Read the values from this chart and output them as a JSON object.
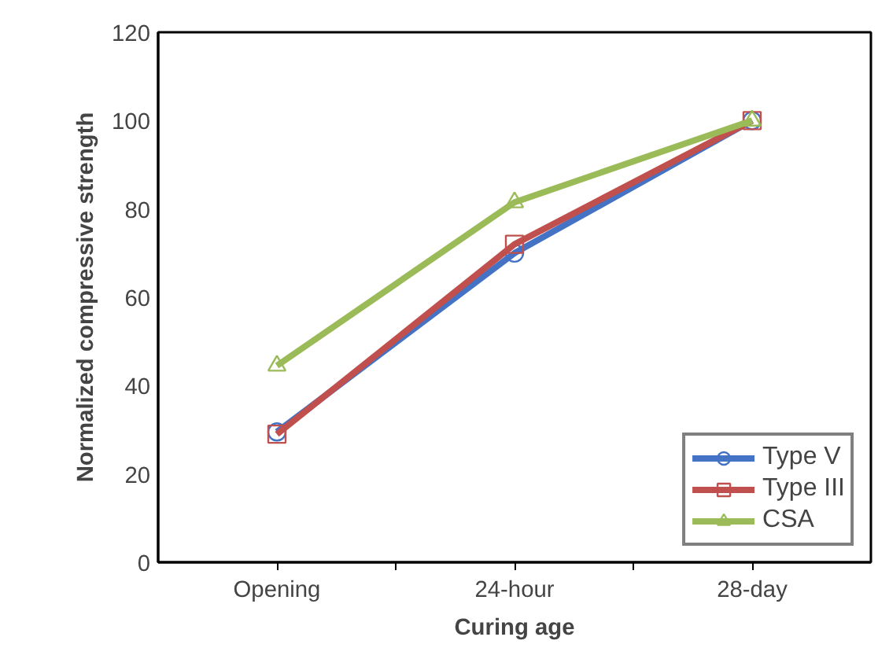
{
  "chart_data": {
    "type": "line",
    "xlabel": "Curing age",
    "ylabel": "Normalized compressive strength",
    "categories": [
      "Opening",
      "24-hour",
      "28-day"
    ],
    "series": [
      {
        "name": "Type V",
        "color": "#4472c4",
        "marker": "circle",
        "values": [
          29.5,
          70,
          100
        ]
      },
      {
        "name": "Type III",
        "color": "#c0504d",
        "marker": "square",
        "values": [
          29,
          72,
          100
        ]
      },
      {
        "name": "CSA",
        "color": "#9bbb59",
        "marker": "triangle",
        "values": [
          44.5,
          81.5,
          100
        ]
      }
    ],
    "ylim": [
      0,
      120
    ],
    "yticks": [
      0,
      20,
      40,
      60,
      80,
      100,
      120
    ],
    "grid": false,
    "legend": "bottom right"
  }
}
